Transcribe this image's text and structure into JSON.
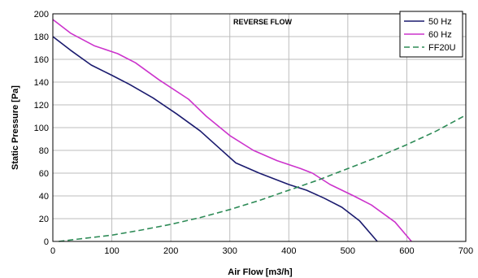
{
  "chart_data": {
    "type": "line",
    "title": "REVERSE FLOW",
    "xlabel": "Air Flow [m3/h]",
    "ylabel": "Static Pressure [Pa]",
    "xlim": [
      0,
      700
    ],
    "ylim": [
      0,
      200
    ],
    "xticks": [
      0,
      100,
      200,
      300,
      400,
      500,
      600,
      700
    ],
    "yticks": [
      0,
      20,
      40,
      60,
      80,
      100,
      120,
      140,
      160,
      180,
      200
    ],
    "grid": true,
    "legend_position": "top-right",
    "series": [
      {
        "name": "50 Hz",
        "color": "#1a1a6e",
        "style": "solid",
        "x": [
          0,
          30,
          65,
          100,
          130,
          170,
          210,
          250,
          280,
          310,
          350,
          400,
          430,
          460,
          490,
          505,
          520,
          550
        ],
        "y": [
          180,
          168,
          155,
          146,
          138,
          126,
          112,
          97,
          83,
          69,
          60,
          50,
          45,
          38,
          30,
          24,
          18,
          0
        ]
      },
      {
        "name": "60 Hz",
        "color": "#cc33cc",
        "style": "solid",
        "x": [
          0,
          30,
          70,
          110,
          140,
          180,
          230,
          260,
          300,
          340,
          380,
          420,
          440,
          470,
          510,
          540,
          580,
          608
        ],
        "y": [
          195,
          183,
          172,
          165,
          157,
          142,
          125,
          110,
          93,
          80,
          71,
          64,
          60,
          50,
          40,
          32,
          17,
          0
        ]
      },
      {
        "name": "FF20U",
        "color": "#2e8b57",
        "style": "dashed",
        "x": [
          10,
          50,
          100,
          150,
          200,
          250,
          300,
          350,
          400,
          450,
          500,
          550,
          600,
          650,
          700
        ],
        "y": [
          0,
          2.5,
          5.5,
          10,
          15,
          21,
          28,
          36,
          45,
          54,
          64,
          74,
          85,
          97,
          111
        ]
      }
    ]
  }
}
